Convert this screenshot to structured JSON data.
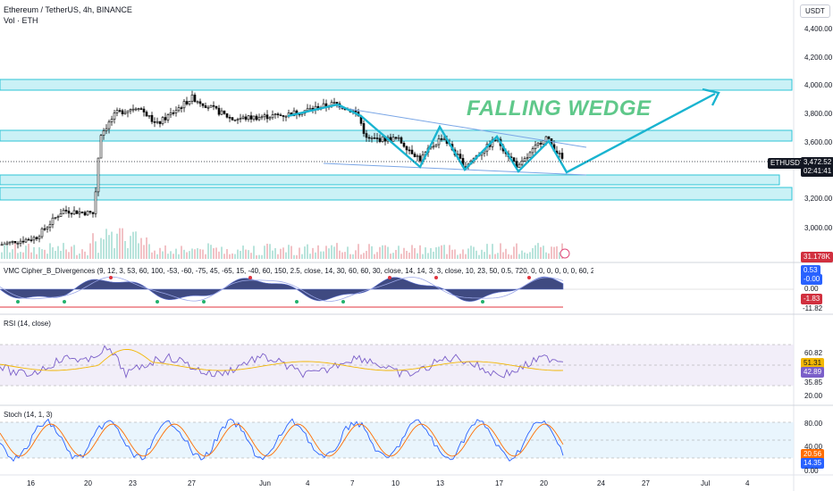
{
  "header": {
    "symbol_line": "Ethereum / TetherUS, 4h, BINANCE",
    "volume_label": "Vol · ETH",
    "currency_button": "USDT"
  },
  "annotation": {
    "text": "FALLING WEDGE"
  },
  "price_axis": {
    "ticks": [
      "4,400.00",
      "4,200.00",
      "4,000.00",
      "3,800.00",
      "3,600.00",
      "3,400.00",
      "3,200.00",
      "3,000.00"
    ],
    "symbol_tag": "ETHUSDT",
    "last_price": "3,472.52",
    "countdown": "02:41:41",
    "volume_value": "31.178K"
  },
  "indicators": {
    "vmc": {
      "title": "VMC Cipher_B_Divergences (9, 12, 3, 53, 60, 100, -53, -60, -75, 45, -65, 15, -40, 60, 150, 2.5, close, 14, 30, 60, 60, 30, close, 14, 14, 3, 3, close, 10, 23, 50, 0.5, 720, 0, 0, 0, 0, 0, 0, 60, 240, 0, 0, 240)",
      "values": [
        "0.53",
        "-0.00",
        "0.00",
        "-1.83",
        "-11.82"
      ]
    },
    "rsi": {
      "title": "RSI (14, close)",
      "ticks": [
        "60.82",
        "51.31",
        "42.89",
        "35.85",
        "20.00"
      ]
    },
    "stoch": {
      "title": "Stoch (14, 1, 3)",
      "ticks": [
        "80.00",
        "40.00",
        "20.56",
        "14.35",
        "0.00"
      ]
    }
  },
  "time_axis": {
    "labels": [
      "16",
      "20",
      "23",
      "27",
      "Jun",
      "4",
      "7",
      "10",
      "13",
      "17",
      "20",
      "24",
      "27",
      "Jul",
      "4"
    ]
  },
  "colors": {
    "zone_fill": "#9fe6ef",
    "zone_stroke": "#2ec4d6",
    "pattern_line": "#19b4d0",
    "wedge_line": "#7aa6e6",
    "wedge_text": "#5fc88a",
    "candle_up": "#0a0a0a",
    "candle_down": "#0a0a0a",
    "rsi_line": "#7b5fc9",
    "rsi_ma": "#f2b705",
    "stoch_k": "#2962ff",
    "stoch_d": "#ff6d00",
    "price_tag": "#131722",
    "volume_tag": "#d1303f"
  }
}
